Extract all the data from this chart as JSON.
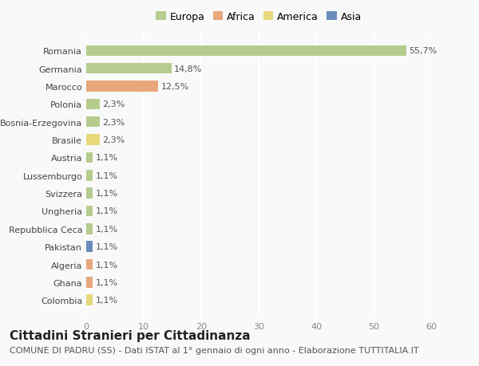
{
  "categories": [
    "Romania",
    "Germania",
    "Marocco",
    "Polonia",
    "Bosnia-Erzegovina",
    "Brasile",
    "Austria",
    "Lussemburgo",
    "Svizzera",
    "Ungheria",
    "Repubblica Ceca",
    "Pakistan",
    "Algeria",
    "Ghana",
    "Colombia"
  ],
  "values": [
    55.7,
    14.8,
    12.5,
    2.3,
    2.3,
    2.3,
    1.1,
    1.1,
    1.1,
    1.1,
    1.1,
    1.1,
    1.1,
    1.1,
    1.1
  ],
  "labels": [
    "55,7%",
    "14,8%",
    "12,5%",
    "2,3%",
    "2,3%",
    "2,3%",
    "1,1%",
    "1,1%",
    "1,1%",
    "1,1%",
    "1,1%",
    "1,1%",
    "1,1%",
    "1,1%",
    "1,1%"
  ],
  "colors": [
    "#b5cc8e",
    "#b5cc8e",
    "#e8a87c",
    "#b5cc8e",
    "#b5cc8e",
    "#e8d87c",
    "#b5cc8e",
    "#b5cc8e",
    "#b5cc8e",
    "#b5cc8e",
    "#b5cc8e",
    "#6b8cba",
    "#e8a87c",
    "#e8a87c",
    "#e8d87c"
  ],
  "legend": {
    "Europa": "#b5cc8e",
    "Africa": "#e8a87c",
    "America": "#e8d87c",
    "Asia": "#6b8cba"
  },
  "xlim": [
    0,
    60
  ],
  "xticks": [
    0,
    10,
    20,
    30,
    40,
    50,
    60
  ],
  "title": "Cittadini Stranieri per Cittadinanza",
  "subtitle": "COMUNE DI PADRU (SS) - Dati ISTAT al 1° gennaio di ogni anno - Elaborazione TUTTITALIA.IT",
  "bg_color": "#f9f9f9",
  "grid_color": "#ffffff",
  "title_fontsize": 11,
  "subtitle_fontsize": 8,
  "label_fontsize": 8,
  "tick_fontsize": 8,
  "ytick_fontsize": 8
}
